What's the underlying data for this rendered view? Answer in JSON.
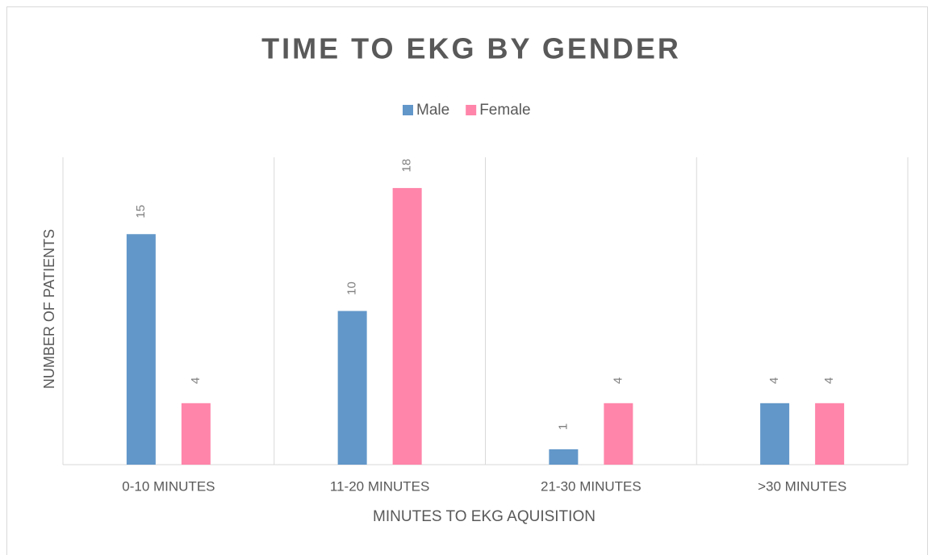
{
  "chart_data": {
    "type": "bar",
    "title": "TIME TO EKG BY GENDER",
    "x_label": "MINUTES TO EKG AQUISITION",
    "y_label": "NUMBER OF PATIENTS",
    "categories": [
      "0-10 MINUTES",
      "11-20 MINUTES",
      "21-30 MINUTES",
      ">30 MINUTES"
    ],
    "series": [
      {
        "name": "Male",
        "color": "#6297c9",
        "values": [
          15,
          10,
          1,
          4
        ]
      },
      {
        "name": "Female",
        "color": "#ff85aa",
        "values": [
          4,
          18,
          4,
          4
        ]
      }
    ],
    "ylim": [
      0,
      20
    ],
    "legend": "top"
  }
}
